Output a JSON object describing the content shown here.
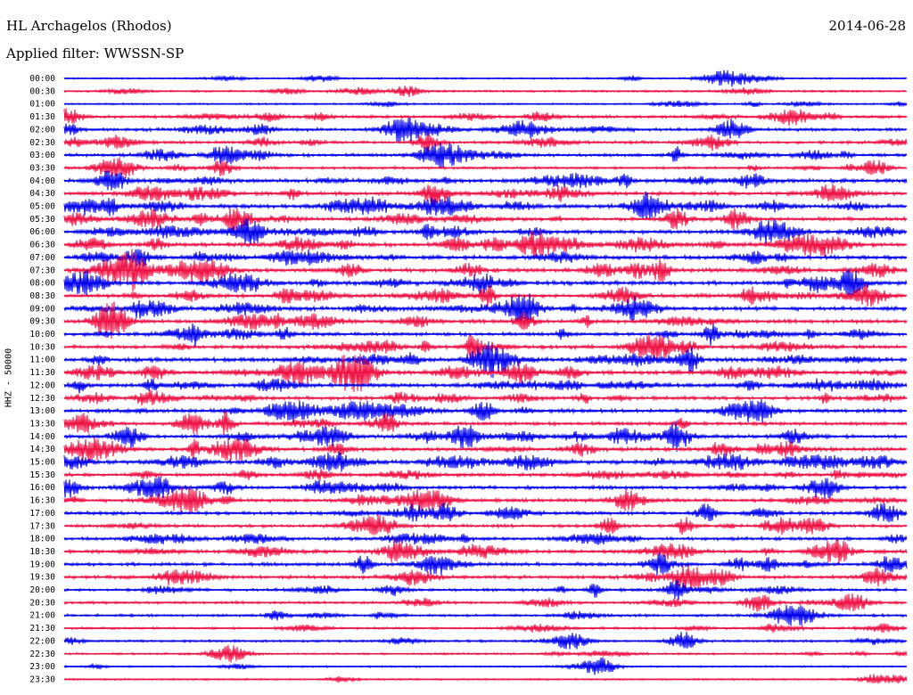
{
  "header": {
    "station": "HL Archagelos (Rhodos)",
    "date": "2014-06-28",
    "filter_label": "Applied filter:",
    "filter_value": "WWSSN-SP"
  },
  "chart_data": {
    "type": "line",
    "ylabel": "HHZ - 50000",
    "row_labels": [
      "00:00",
      "00:30",
      "01:00",
      "01:30",
      "02:00",
      "02:30",
      "03:00",
      "03:30",
      "04:00",
      "04:30",
      "05:00",
      "05:30",
      "06:00",
      "06:30",
      "07:00",
      "07:30",
      "08:00",
      "08:30",
      "09:00",
      "09:30",
      "10:00",
      "10:30",
      "11:00",
      "11:30",
      "12:00",
      "12:30",
      "13:00",
      "13:30",
      "14:00",
      "14:30",
      "15:00",
      "15:30",
      "16:00",
      "16:30",
      "17:00",
      "17:30",
      "18:00",
      "18:30",
      "19:00",
      "19:30",
      "20:00",
      "20:30",
      "21:00",
      "21:30",
      "22:00",
      "22:30",
      "23:00",
      "23:30"
    ],
    "noise_level": [
      0.2,
      0.3,
      0.2,
      0.6,
      0.7,
      0.6,
      0.7,
      0.5,
      0.9,
      0.9,
      1.0,
      0.9,
      0.9,
      1.0,
      1.0,
      1.0,
      1.0,
      0.9,
      1.0,
      0.9,
      0.8,
      0.9,
      1.0,
      0.9,
      0.9,
      0.9,
      0.9,
      0.8,
      0.9,
      0.9,
      1.0,
      0.8,
      0.8,
      0.8,
      0.8,
      0.7,
      0.7,
      0.8,
      0.8,
      0.8,
      0.6,
      0.5,
      0.5,
      0.4,
      0.4,
      0.3,
      0.2,
      0.2
    ],
    "colors": {
      "even": "#0000ee",
      "odd": "#ee1144"
    },
    "grid": false,
    "legend": "none"
  }
}
